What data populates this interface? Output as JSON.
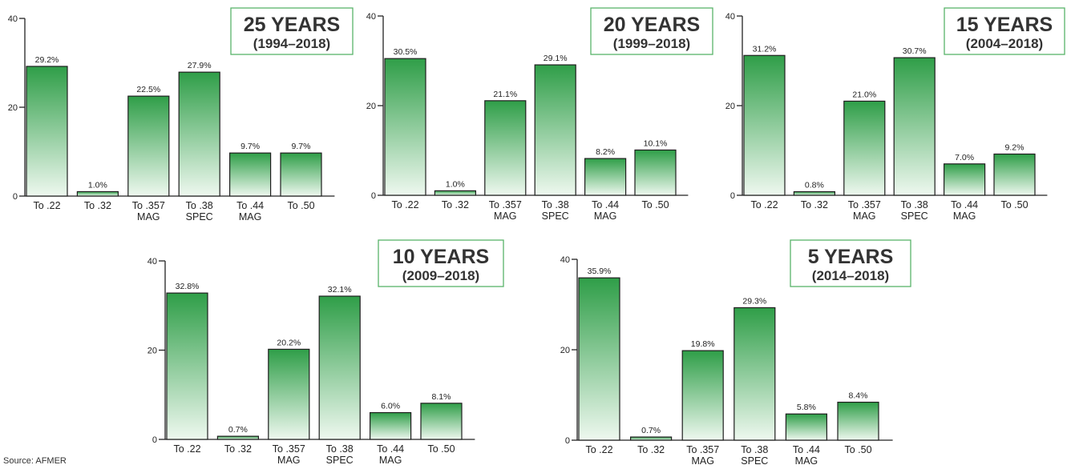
{
  "source": "Source: AFMER",
  "colors": {
    "bar_top": "#2f9e48",
    "bar_bottom": "#eef8ef",
    "title_border": "#59b36a"
  },
  "chart_data": [
    {
      "type": "bar",
      "title": "25 YEARS",
      "subtitle": "(1994–2018)",
      "categories": [
        [
          "To .22"
        ],
        [
          "To .32"
        ],
        [
          "To .357",
          "MAG"
        ],
        [
          "To .38",
          "SPEC"
        ],
        [
          "To .44",
          "MAG"
        ],
        [
          "To .50"
        ]
      ],
      "values": [
        29.2,
        1.0,
        22.5,
        27.9,
        9.7,
        9.7
      ],
      "value_labels": [
        "29.2%",
        "1.0%",
        "22.5%",
        "27.9%",
        "9.7%",
        "9.7%"
      ],
      "yticks": [
        "0",
        "20",
        "40"
      ],
      "ylim": [
        0,
        40
      ],
      "grid": false
    },
    {
      "type": "bar",
      "title": "20 YEARS",
      "subtitle": "(1999–2018)",
      "categories": [
        [
          "To .22"
        ],
        [
          "To .32"
        ],
        [
          "To .357",
          "MAG"
        ],
        [
          "To .38",
          "SPEC"
        ],
        [
          "To .44",
          "MAG"
        ],
        [
          "To .50"
        ]
      ],
      "values": [
        30.5,
        1.0,
        21.1,
        29.1,
        8.2,
        10.1
      ],
      "value_labels": [
        "30.5%",
        "1.0%",
        "21.1%",
        "29.1%",
        "8.2%",
        "10.1%"
      ],
      "yticks": [
        "0",
        "20",
        "40"
      ],
      "ylim": [
        0,
        40
      ],
      "grid": false
    },
    {
      "type": "bar",
      "title": "15 YEARS",
      "subtitle": "(2004–2018)",
      "categories": [
        [
          "To .22"
        ],
        [
          "To .32"
        ],
        [
          "To .357",
          "MAG"
        ],
        [
          "To .38",
          "SPEC"
        ],
        [
          "To .44",
          "MAG"
        ],
        [
          "To .50"
        ]
      ],
      "values": [
        31.2,
        0.8,
        21.0,
        30.7,
        7.0,
        9.2
      ],
      "value_labels": [
        "31.2%",
        "0.8%",
        "21.0%",
        "30.7%",
        "7.0%",
        "9.2%"
      ],
      "yticks": [
        "0",
        "20",
        "40"
      ],
      "ylim": [
        0,
        40
      ],
      "grid": false
    },
    {
      "type": "bar",
      "title": "10 YEARS",
      "subtitle": "(2009–2018)",
      "categories": [
        [
          "To .22"
        ],
        [
          "To .32"
        ],
        [
          "To .357",
          "MAG"
        ],
        [
          "To .38",
          "SPEC"
        ],
        [
          "To .44",
          "MAG"
        ],
        [
          "To .50"
        ]
      ],
      "values": [
        32.8,
        0.7,
        20.2,
        32.1,
        6.0,
        8.1
      ],
      "value_labels": [
        "32.8%",
        "0.7%",
        "20.2%",
        "32.1%",
        "6.0%",
        "8.1%"
      ],
      "yticks": [
        "0",
        "20",
        "40"
      ],
      "ylim": [
        0,
        40
      ],
      "grid": false
    },
    {
      "type": "bar",
      "title": "5 YEARS",
      "subtitle": "(2014–2018)",
      "categories": [
        [
          "To .22"
        ],
        [
          "To .32"
        ],
        [
          "To .357",
          "MAG"
        ],
        [
          "To .38",
          "SPEC"
        ],
        [
          "To .44",
          "MAG"
        ],
        [
          "To .50"
        ]
      ],
      "values": [
        35.9,
        0.7,
        19.8,
        29.3,
        5.8,
        8.4
      ],
      "value_labels": [
        "35.9%",
        "0.7%",
        "19.8%",
        "29.3%",
        "5.8%",
        "8.4%"
      ],
      "yticks": [
        "0",
        "20",
        "40"
      ],
      "ylim": [
        0,
        40
      ],
      "grid": false
    }
  ]
}
